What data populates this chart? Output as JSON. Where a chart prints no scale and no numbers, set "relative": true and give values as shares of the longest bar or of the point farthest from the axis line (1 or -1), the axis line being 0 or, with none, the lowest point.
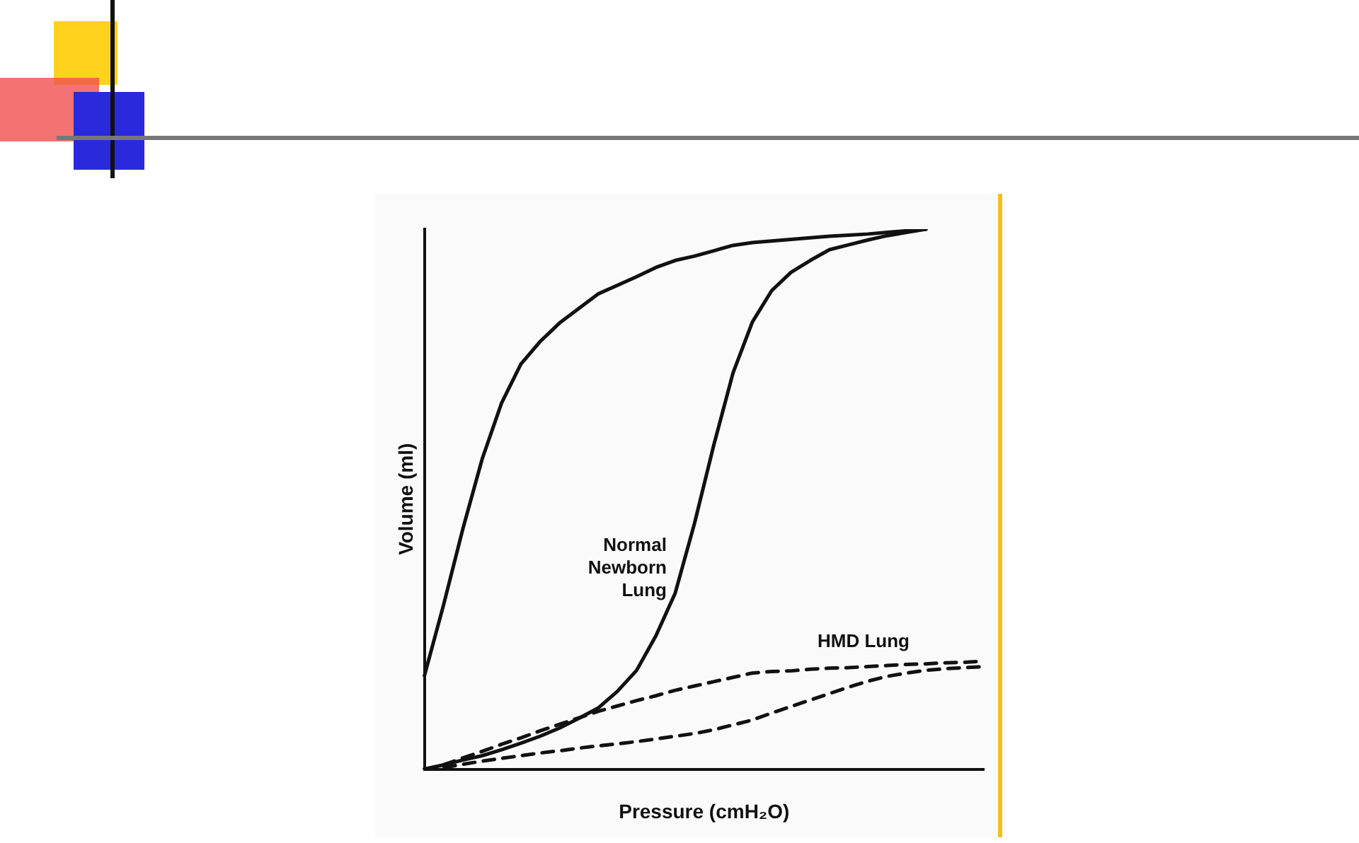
{
  "chart_data": {
    "type": "line",
    "relative": true,
    "xlabel": "Pressure (cmH₂O)",
    "ylabel": "Volume (ml)",
    "legend": false,
    "grid": false,
    "marker": "none",
    "categories": [
      null,
      null,
      null,
      null,
      null,
      null,
      null,
      null,
      null,
      null,
      null,
      null,
      null,
      null,
      null,
      null,
      null,
      null,
      null,
      null,
      null,
      null,
      null,
      null,
      null,
      null,
      null,
      null,
      null,
      null
    ],
    "series": [
      {
        "name": "Normal Newborn Lung",
        "color": "#111111",
        "line_style": "solid",
        "values": [
          0,
          0.008,
          0.017,
          0.025,
          0.036,
          0.048,
          0.061,
          0.076,
          0.094,
          0.113,
          0.144,
          0.183,
          0.247,
          0.326,
          0.455,
          0.6,
          0.734,
          0.828,
          0.886,
          0.92,
          0.942,
          0.962,
          0.971,
          0.98,
          0.988,
          0.994,
          1,
          null,
          null,
          null
        ]
      },
      {
        "color": "#111111",
        "line_style": "solid",
        "values": [
          0.173,
          0.305,
          0.446,
          0.575,
          0.678,
          0.75,
          0.792,
          0.826,
          0.853,
          0.88,
          0.896,
          0.912,
          0.929,
          0.942,
          0.95,
          0.96,
          0.97,
          0.975,
          0.978,
          0.981,
          0.984,
          0.987,
          0.989,
          0.991,
          0.994,
          0.997,
          1,
          null,
          null,
          null
        ]
      },
      {
        "name": "HMD Lung",
        "color": "#111111",
        "line_style": "dashed",
        "values": [
          0,
          0.003,
          0.009,
          0.015,
          0.02,
          0.025,
          0.03,
          0.034,
          0.039,
          0.043,
          0.047,
          0.051,
          0.056,
          0.061,
          0.066,
          0.073,
          0.082,
          0.091,
          0.104,
          0.116,
          0.128,
          0.14,
          0.152,
          0.163,
          0.172,
          0.178,
          0.183,
          0.186,
          0.188,
          0.19
        ]
      },
      {
        "color": "#111111",
        "line_style": "dashed",
        "values": [
          0,
          0.008,
          0.021,
          0.033,
          0.046,
          0.058,
          0.071,
          0.083,
          0.095,
          0.107,
          0.117,
          0.127,
          0.136,
          0.146,
          0.154,
          0.162,
          0.17,
          0.178,
          0.181,
          0.182,
          0.185,
          0.187,
          0.188,
          0.19,
          0.192,
          0.194,
          0.195,
          0.197,
          0.198,
          0.2
        ]
      }
    ]
  }
}
